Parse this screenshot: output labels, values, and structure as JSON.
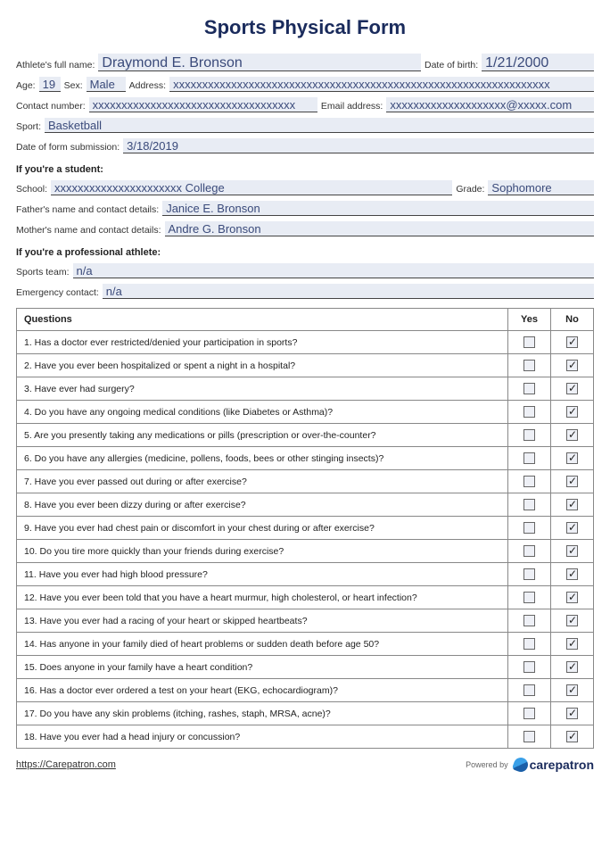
{
  "title": "Sports Physical Form",
  "labels": {
    "fullName": "Athlete's full name:",
    "dob": "Date of birth:",
    "age": "Age:",
    "sex": "Sex:",
    "address": "Address:",
    "contactNumber": "Contact number:",
    "email": "Email address:",
    "sport": "Sport:",
    "submission": "Date of form submission:",
    "studentHdr": "If you're a student:",
    "school": "School:",
    "grade": "Grade:",
    "father": "Father's name and contact details:",
    "mother": "Mother's name and contact details:",
    "proHdr": "If you're a professional athlete:",
    "team": "Sports team:",
    "emergency": "Emergency contact:"
  },
  "fields": {
    "fullName": "Draymond E. Bronson",
    "dob": "1/21/2000",
    "age": "19",
    "sex": "Male",
    "address": "xxxxxxxxxxxxxxxxxxxxxxxxxxxxxxxxxxxxxxxxxxxxxxxxxxxxxxxxxxxxxxxxx",
    "contactNumber": "xxxxxxxxxxxxxxxxxxxxxxxxxxxxxxxxxxx",
    "email": "xxxxxxxxxxxxxxxxxxxx@xxxxx.com",
    "sport": "Basketball",
    "submission": "3/18/2019",
    "school": "xxxxxxxxxxxxxxxxxxxxxx College",
    "grade": "Sophomore",
    "father": "Janice E. Bronson",
    "mother": "Andre G. Bronson",
    "team": "n/a",
    "emergency": "n/a"
  },
  "table": {
    "headers": {
      "q": "Questions",
      "yes": "Yes",
      "no": "No"
    },
    "rows": [
      {
        "q": "1. Has a doctor ever restricted/denied your participation in sports?",
        "yes": false,
        "no": true
      },
      {
        "q": "2. Have you ever been hospitalized or spent a night in a hospital?",
        "yes": false,
        "no": true
      },
      {
        "q": "3. Have ever had surgery?",
        "yes": false,
        "no": true
      },
      {
        "q": "4. Do you have any ongoing medical conditions (like Diabetes or Asthma)?",
        "yes": false,
        "no": true
      },
      {
        "q": "5. Are you presently taking any medications or pills (prescription or over-the-counter?",
        "yes": false,
        "no": true
      },
      {
        "q": "6. Do you have any allergies (medicine, pollens, foods, bees or other stinging insects)?",
        "yes": false,
        "no": true
      },
      {
        "q": "7. Have you ever passed out during or after exercise?",
        "yes": false,
        "no": true
      },
      {
        "q": "8. Have you ever been dizzy during or after exercise?",
        "yes": false,
        "no": true
      },
      {
        "q": "9. Have you ever had chest pain or discomfort in your chest during or after exercise?",
        "yes": false,
        "no": true
      },
      {
        "q": "10. Do you tire more quickly than your friends during exercise?",
        "yes": false,
        "no": true
      },
      {
        "q": "11. Have you ever had high blood pressure?",
        "yes": false,
        "no": true
      },
      {
        "q": "12. Have you ever been told that you have a heart murmur, high cholesterol, or heart infection?",
        "yes": false,
        "no": true
      },
      {
        "q": "13. Have you ever had a racing of your heart or skipped heartbeats?",
        "yes": false,
        "no": true
      },
      {
        "q": "14. Has anyone in your family died of heart problems or sudden death before age 50?",
        "yes": false,
        "no": true
      },
      {
        "q": "15. Does anyone in your family have a heart condition?",
        "yes": false,
        "no": true
      },
      {
        "q": "16. Has a doctor ever ordered a test on your heart (EKG, echocardiogram)?",
        "yes": false,
        "no": true
      },
      {
        "q": "17. Do you have any skin problems (itching, rashes, staph, MRSA, acne)?",
        "yes": false,
        "no": true
      },
      {
        "q": "18. Have you ever had a head injury or concussion?",
        "yes": false,
        "no": true
      }
    ]
  },
  "footer": {
    "url": "https://Carepatron.com",
    "poweredBy": "Powered by",
    "brand": "carepatron"
  }
}
